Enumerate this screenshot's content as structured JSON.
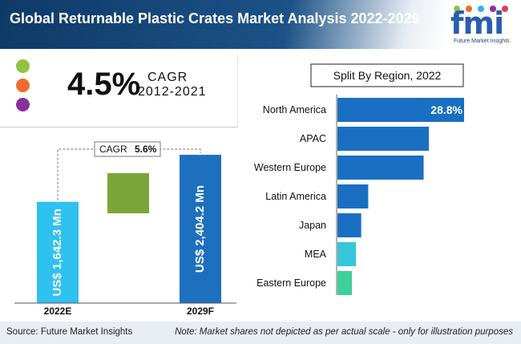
{
  "header": {
    "title": "Global Returnable Plastic Crates Market Analysis 2022-2029"
  },
  "logo": {
    "text": "fmi",
    "subtitle": "Future Market Insights"
  },
  "cagr_block": {
    "value": "4.5%",
    "label": "CAGR",
    "period": "2012-2021"
  },
  "dot_colors": [
    "#8cc43f",
    "#f26a2e",
    "#8b2f9a"
  ],
  "chart_data": [
    {
      "type": "bar",
      "categories": [
        "2022E",
        "2029F"
      ],
      "values": [
        1642.3,
        2404.2
      ],
      "value_labels": [
        "US$ 1,642.3 Mn",
        "US$ 2,404.2 Mn"
      ],
      "annotation": {
        "label": "CAGR",
        "value": "5.6%"
      },
      "ylim": [
        0,
        2600
      ],
      "colors": [
        "#2fc1f0",
        "#1f6fbf"
      ],
      "growth_color": "#7aa53a"
    },
    {
      "type": "bar",
      "orientation": "horizontal",
      "title": "Split By Region, 2022",
      "categories": [
        "North America",
        "APAC",
        "Western Europe",
        "Latin America",
        "Japan",
        "MEA",
        "Eastern Europe"
      ],
      "values": [
        28.8,
        20.8,
        19.6,
        7.0,
        5.4,
        4.2,
        3.3
      ],
      "labeled_value": "28.8%",
      "colors": [
        "#1a6fc2",
        "#1a6fc2",
        "#1a6fc2",
        "#1a6fc2",
        "#1a6fc2",
        "#35c6d9",
        "#3ecf9c"
      ]
    }
  ],
  "footer": {
    "source": "Source: Future Market Insights",
    "note": "Note: Market shares not depicted as per actual scale - only for illustration purposes"
  }
}
